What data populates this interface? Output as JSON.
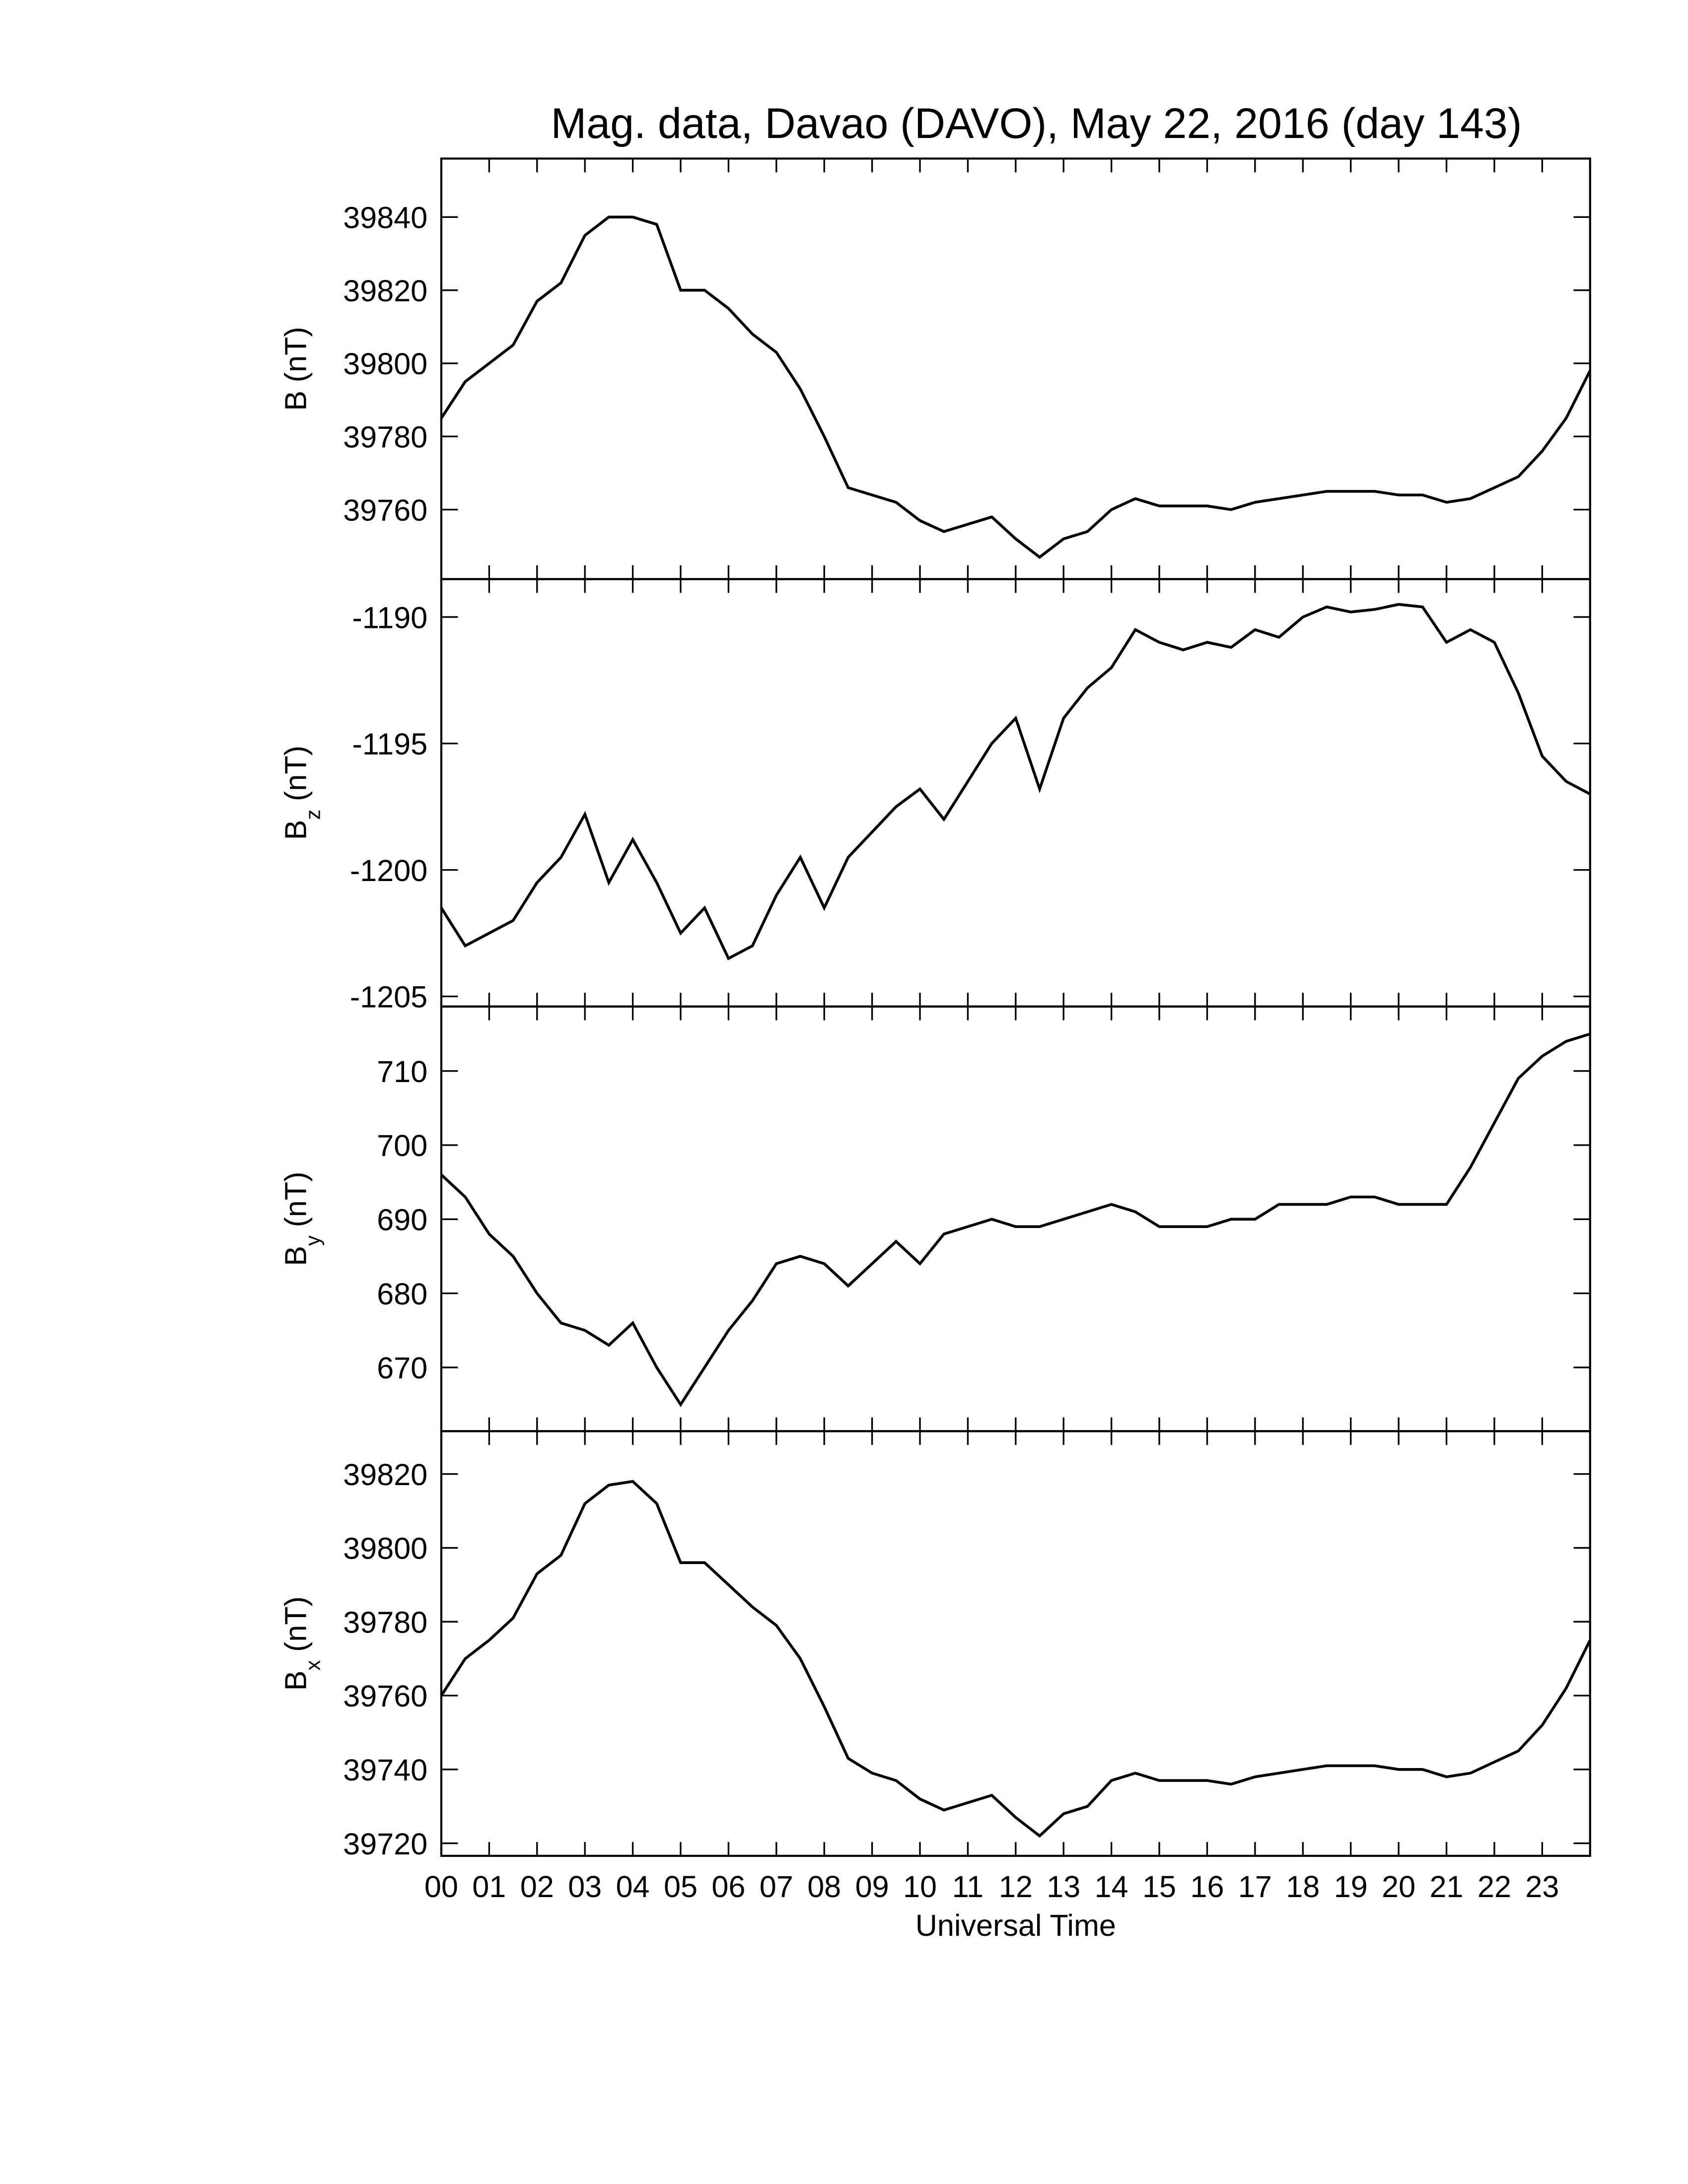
{
  "chart_data": [
    {
      "type": "line",
      "title": "Mag. data, Davao (DAVO), May 22, 2016 (day 143)",
      "ylabel": "B",
      "ylabel_unit": "(nT)",
      "xlim": [
        0,
        24
      ],
      "xticks": [
        0,
        1,
        2,
        3,
        4,
        5,
        6,
        7,
        8,
        9,
        10,
        11,
        12,
        13,
        14,
        15,
        16,
        17,
        18,
        19,
        20,
        21,
        22,
        23
      ],
      "ylim": [
        39741,
        39856
      ],
      "yticks": [
        39760,
        39780,
        39800,
        39820,
        39840
      ],
      "color": "#000000",
      "x": [
        0,
        0.5,
        1,
        1.5,
        2,
        2.5,
        3,
        3.5,
        4,
        4.5,
        5,
        5.5,
        6,
        6.5,
        7,
        7.5,
        8,
        8.5,
        9,
        9.5,
        10,
        10.5,
        11,
        11.5,
        12,
        12.5,
        13,
        13.5,
        14,
        14.5,
        15,
        15.5,
        16,
        16.5,
        17,
        17.5,
        18,
        18.5,
        19,
        19.5,
        20,
        20.5,
        21,
        21.5,
        22,
        22.5,
        23,
        23.5,
        24
      ],
      "values": [
        39785,
        39795,
        39800,
        39805,
        39817,
        39822,
        39835,
        39840,
        39840,
        39838,
        39820,
        39820,
        39815,
        39808,
        39803,
        39793,
        39780,
        39766,
        39764,
        39762,
        39757,
        39754,
        39756,
        39758,
        39752,
        39747,
        39752,
        39754,
        39760,
        39763,
        39761,
        39761,
        39761,
        39760,
        39762,
        39763,
        39764,
        39765,
        39765,
        39765,
        39764,
        39764,
        39762,
        39763,
        39766,
        39769,
        39776,
        39785,
        39798
      ]
    },
    {
      "type": "line",
      "ylabel": "B",
      "ylabel_sub": "z",
      "ylabel_unit": "(nT)",
      "xlim": [
        0,
        24
      ],
      "xticks": [
        0,
        1,
        2,
        3,
        4,
        5,
        6,
        7,
        8,
        9,
        10,
        11,
        12,
        13,
        14,
        15,
        16,
        17,
        18,
        19,
        20,
        21,
        22,
        23
      ],
      "ylim": [
        -1205.4,
        -1188.5
      ],
      "yticks": [
        -1205,
        -1200,
        -1195,
        -1190
      ],
      "color": "#000000",
      "x": [
        0,
        0.5,
        1,
        1.5,
        2,
        2.5,
        3,
        3.5,
        4,
        4.5,
        5,
        5.5,
        6,
        6.5,
        7,
        7.5,
        8,
        8.5,
        9,
        9.5,
        10,
        10.5,
        11,
        11.5,
        12,
        12.5,
        13,
        13.5,
        14,
        14.5,
        15,
        15.5,
        16,
        16.5,
        17,
        17.5,
        18,
        18.5,
        19,
        19.5,
        20,
        20.5,
        21,
        21.5,
        22,
        22.5,
        23,
        23.5,
        24
      ],
      "values": [
        -1201.5,
        -1203,
        -1202.5,
        -1202,
        -1200.5,
        -1199.5,
        -1197.8,
        -1200.5,
        -1198.8,
        -1200.5,
        -1202.5,
        -1201.5,
        -1203.5,
        -1203,
        -1201,
        -1199.5,
        -1201.5,
        -1199.5,
        -1198.5,
        -1197.5,
        -1196.8,
        -1198,
        -1196.5,
        -1195,
        -1194,
        -1196.8,
        -1194,
        -1192.8,
        -1192,
        -1190.5,
        -1191,
        -1191.3,
        -1191,
        -1191.2,
        -1190.5,
        -1190.8,
        -1190,
        -1189.6,
        -1189.8,
        -1189.7,
        -1189.5,
        -1189.6,
        -1191,
        -1190.5,
        -1191,
        -1193,
        -1195.5,
        -1196.5,
        -1197
      ]
    },
    {
      "type": "line",
      "ylabel": "B",
      "ylabel_sub": "y",
      "ylabel_unit": "(nT)",
      "xlim": [
        0,
        24
      ],
      "xticks": [
        0,
        1,
        2,
        3,
        4,
        5,
        6,
        7,
        8,
        9,
        10,
        11,
        12,
        13,
        14,
        15,
        16,
        17,
        18,
        19,
        20,
        21,
        22,
        23
      ],
      "ylim": [
        661.4,
        718.7
      ],
      "yticks": [
        670,
        680,
        690,
        700,
        710
      ],
      "color": "#000000",
      "x": [
        0,
        0.5,
        1,
        1.5,
        2,
        2.5,
        3,
        3.5,
        4,
        4.5,
        5,
        5.5,
        6,
        6.5,
        7,
        7.5,
        8,
        8.5,
        9,
        9.5,
        10,
        10.5,
        11,
        11.5,
        12,
        12.5,
        13,
        13.5,
        14,
        14.5,
        15,
        15.5,
        16,
        16.5,
        17,
        17.5,
        18,
        18.5,
        19,
        19.5,
        20,
        20.5,
        21,
        21.5,
        22,
        22.5,
        23,
        23.5,
        24
      ],
      "values": [
        696,
        693,
        688,
        685,
        680,
        676,
        675,
        673,
        676,
        670,
        665,
        670,
        675,
        679,
        684,
        685,
        684,
        681,
        684,
        687,
        684,
        688,
        689,
        690,
        689,
        689,
        690,
        691,
        692,
        691,
        689,
        689,
        689,
        690,
        690,
        692,
        692,
        692,
        693,
        693,
        692,
        692,
        692,
        697,
        703,
        709,
        712,
        714,
        715
      ]
    },
    {
      "type": "line",
      "ylabel": "B",
      "ylabel_sub": "x",
      "ylabel_unit": "(nT)",
      "xlabel": "Universal Time",
      "xlim": [
        0,
        24
      ],
      "xticks": [
        {
          "value": 0,
          "label": "00"
        },
        {
          "value": 1,
          "label": "01"
        },
        {
          "value": 2,
          "label": "02"
        },
        {
          "value": 3,
          "label": "03"
        },
        {
          "value": 4,
          "label": "04"
        },
        {
          "value": 5,
          "label": "05"
        },
        {
          "value": 6,
          "label": "06"
        },
        {
          "value": 7,
          "label": "07"
        },
        {
          "value": 8,
          "label": "08"
        },
        {
          "value": 9,
          "label": "09"
        },
        {
          "value": 10,
          "label": "10"
        },
        {
          "value": 11,
          "label": "11"
        },
        {
          "value": 12,
          "label": "12"
        },
        {
          "value": 13,
          "label": "13"
        },
        {
          "value": 14,
          "label": "14"
        },
        {
          "value": 15,
          "label": "15"
        },
        {
          "value": 16,
          "label": "16"
        },
        {
          "value": 17,
          "label": "17"
        },
        {
          "value": 18,
          "label": "18"
        },
        {
          "value": 19,
          "label": "19"
        },
        {
          "value": 20,
          "label": "20"
        },
        {
          "value": 21,
          "label": "21"
        },
        {
          "value": 22,
          "label": "22"
        },
        {
          "value": 23,
          "label": "23"
        }
      ],
      "ylim": [
        39716.6,
        39831.6
      ],
      "yticks": [
        39720,
        39740,
        39760,
        39780,
        39800,
        39820
      ],
      "color": "#000000",
      "x": [
        0,
        0.5,
        1,
        1.5,
        2,
        2.5,
        3,
        3.5,
        4,
        4.5,
        5,
        5.5,
        6,
        6.5,
        7,
        7.5,
        8,
        8.5,
        9,
        9.5,
        10,
        10.5,
        11,
        11.5,
        12,
        12.5,
        13,
        13.5,
        14,
        14.5,
        15,
        15.5,
        16,
        16.5,
        17,
        17.5,
        18,
        18.5,
        19,
        19.5,
        20,
        20.5,
        21,
        21.5,
        22,
        22.5,
        23,
        23.5,
        24
      ],
      "values": [
        39760,
        39770,
        39775,
        39781,
        39793,
        39798,
        39812,
        39817,
        39818,
        39812,
        39796,
        39796,
        39790,
        39784,
        39779,
        39770,
        39757,
        39743,
        39739,
        39737,
        39732,
        39729,
        39731,
        39733,
        39727,
        39722,
        39728,
        39730,
        39737,
        39739,
        39737,
        39737,
        39737,
        39736,
        39738,
        39739,
        39740,
        39741,
        39741,
        39741,
        39740,
        39740,
        39738,
        39739,
        39742,
        39745,
        39752,
        39762,
        39775
      ]
    }
  ]
}
